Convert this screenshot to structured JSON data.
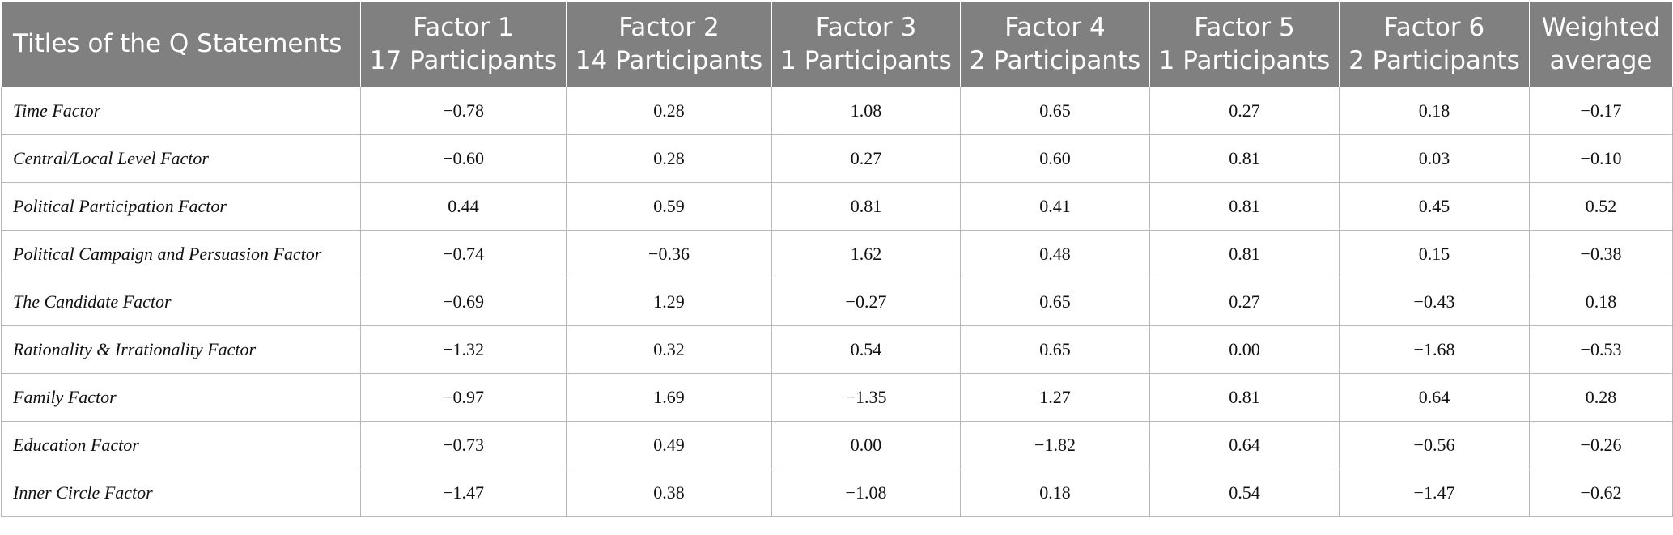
{
  "table": {
    "headers": [
      {
        "line1": "Titles of the Q Statements",
        "line2": ""
      },
      {
        "line1": "Factor 1",
        "line2": "17 Participants"
      },
      {
        "line1": "Factor 2",
        "line2": "14 Participants"
      },
      {
        "line1": "Factor 3",
        "line2": "1 Participants"
      },
      {
        "line1": "Factor 4",
        "line2": "2 Participants"
      },
      {
        "line1": "Factor 5",
        "line2": "1 Participants"
      },
      {
        "line1": "Factor 6",
        "line2": "2 Participants"
      },
      {
        "line1": "Weighted",
        "line2": "average"
      }
    ],
    "rows": [
      {
        "label": "Time Factor",
        "values": [
          "−0.78",
          "0.28",
          "1.08",
          "0.65",
          "0.27",
          "0.18",
          "−0.17"
        ]
      },
      {
        "label": "Central/Local Level Factor",
        "values": [
          "−0.60",
          "0.28",
          "0.27",
          "0.60",
          "0.81",
          "0.03",
          "−0.10"
        ]
      },
      {
        "label": "Political Participation Factor",
        "values": [
          "0.44",
          "0.59",
          "0.81",
          "0.41",
          "0.81",
          "0.45",
          "0.52"
        ]
      },
      {
        "label": "Political Campaign and Persuasion Factor",
        "values": [
          "−0.74",
          "−0.36",
          "1.62",
          "0.48",
          "0.81",
          "0.15",
          "−0.38"
        ]
      },
      {
        "label": "The Candidate Factor",
        "values": [
          "−0.69",
          "1.29",
          "−0.27",
          "0.65",
          "0.27",
          "−0.43",
          "0.18"
        ]
      },
      {
        "label": "Rationality & Irrationality Factor",
        "values": [
          "−1.32",
          "0.32",
          "0.54",
          "0.65",
          "0.00",
          "−1.68",
          "−0.53"
        ]
      },
      {
        "label": "Family Factor",
        "values": [
          "−0.97",
          "1.69",
          "−1.35",
          "1.27",
          "0.81",
          "0.64",
          "0.28"
        ]
      },
      {
        "label": "Education Factor",
        "values": [
          "−0.73",
          "0.49",
          "0.00",
          "−1.82",
          "0.64",
          "−0.56",
          "−0.26"
        ]
      },
      {
        "label": "Inner Circle Factor",
        "values": [
          "−1.47",
          "0.38",
          "−1.08",
          "0.18",
          "0.54",
          "−1.47",
          "−0.62"
        ]
      }
    ]
  }
}
